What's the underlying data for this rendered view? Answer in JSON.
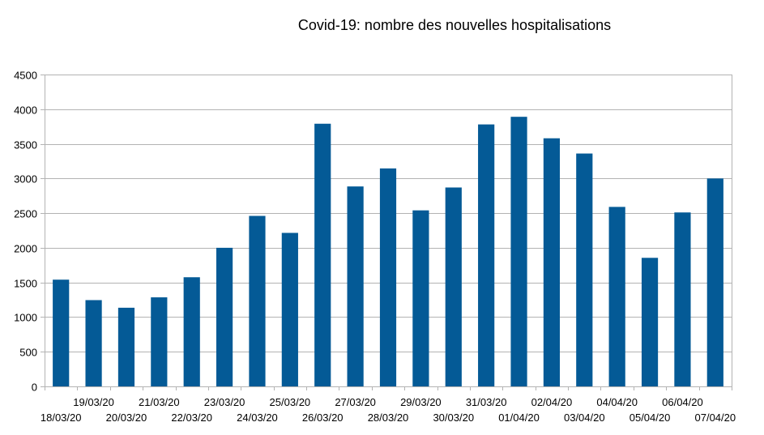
{
  "chart_data": {
    "type": "bar",
    "title": "Covid-19: nombre des nouvelles hospitalisations",
    "xlabel": "",
    "ylabel": "",
    "ylim": [
      0,
      4500
    ],
    "yticks": [
      0,
      500,
      1000,
      1500,
      2000,
      2500,
      3000,
      3500,
      4000,
      4500
    ],
    "grid": true,
    "legend": "none",
    "bar_color": "#045a96",
    "categories": [
      "18/03/20",
      "19/03/20",
      "20/03/20",
      "21/03/20",
      "22/03/20",
      "23/03/20",
      "24/03/20",
      "25/03/20",
      "26/03/20",
      "27/03/20",
      "28/03/20",
      "29/03/20",
      "30/03/20",
      "31/03/20",
      "01/04/20",
      "02/04/20",
      "03/04/20",
      "04/04/20",
      "05/04/20",
      "06/04/20",
      "07/04/20"
    ],
    "values": [
      1540,
      1245,
      1135,
      1285,
      1575,
      2000,
      2460,
      2215,
      3790,
      2885,
      3145,
      2540,
      2870,
      3780,
      3890,
      3580,
      3360,
      2590,
      1855,
      2510,
      3000
    ]
  }
}
